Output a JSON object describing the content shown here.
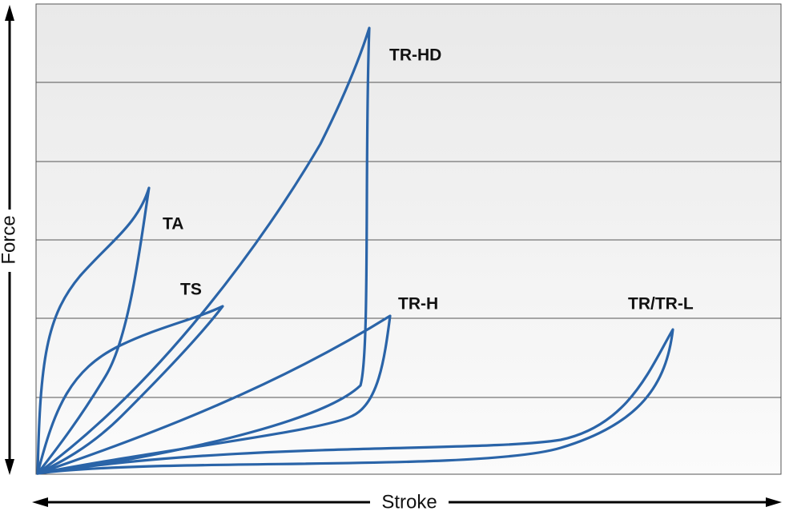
{
  "axes": {
    "y_label": "Force",
    "x_label": "Stroke"
  },
  "curves": [
    {
      "label": "TR-HD"
    },
    {
      "label": "TA"
    },
    {
      "label": "TS"
    },
    {
      "label": "TR-H"
    },
    {
      "label": "TR/TR-L"
    }
  ]
}
